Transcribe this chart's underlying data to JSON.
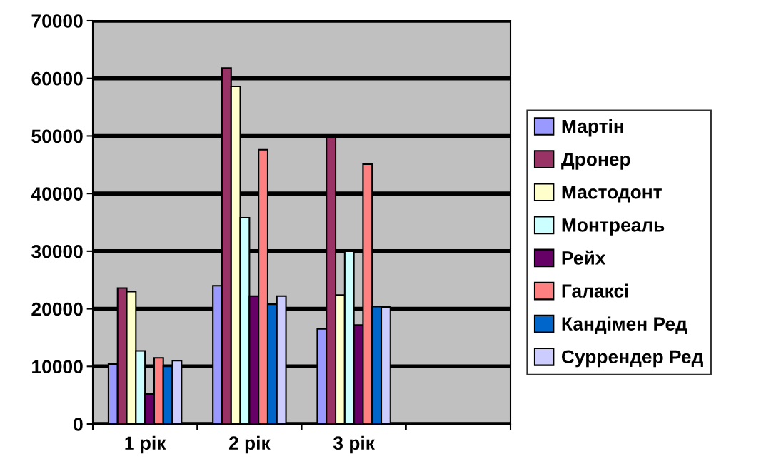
{
  "chart_data": {
    "type": "bar",
    "categories": [
      "1 рік",
      "2 рік",
      "3 рік",
      null
    ],
    "series": [
      {
        "name": "Мартін",
        "color": "#9999ff",
        "values": [
          10400,
          24000,
          16500,
          null
        ]
      },
      {
        "name": "Дронер",
        "color": "#993366",
        "values": [
          23600,
          61800,
          49800,
          null
        ]
      },
      {
        "name": "Мастодонт",
        "color": "#ffffcc",
        "values": [
          23000,
          58600,
          22400,
          null
        ]
      },
      {
        "name": "Монтреаль",
        "color": "#ccffff",
        "values": [
          12700,
          35800,
          30000,
          null
        ]
      },
      {
        "name": "Рейх",
        "color": "#660066",
        "values": [
          5200,
          22200,
          17200,
          null
        ]
      },
      {
        "name": "Галаксі",
        "color": "#ff8080",
        "values": [
          11500,
          47600,
          45100,
          null
        ]
      },
      {
        "name": "Кандімен Ред",
        "color": "#0066cc",
        "values": [
          10000,
          20800,
          20400,
          null
        ]
      },
      {
        "name": "Суррендер Ред",
        "color": "#ccccff",
        "values": [
          11000,
          22200,
          20300,
          null
        ]
      }
    ],
    "ylim": [
      0,
      70000
    ],
    "yticks": [
      0,
      10000,
      20000,
      30000,
      40000,
      50000,
      60000,
      70000
    ],
    "grid": "y",
    "legend": "right"
  }
}
